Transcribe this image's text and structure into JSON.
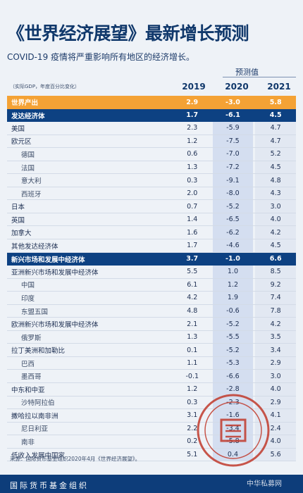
{
  "title": "《世界经济展望》最新增长预测",
  "subtitle": "COVID-19 疫情将严重影响所有地区的经济增长。",
  "header": {
    "projection_label": "预测值",
    "note": "（实际GDP，年度百分比变化）",
    "years": [
      "2019",
      "2020",
      "2021"
    ]
  },
  "rows": [
    {
      "label": "世界产出",
      "v": [
        "2.9",
        "-3.0",
        "5.8"
      ]
    },
    {
      "label": "发达经济体",
      "v": [
        "1.7",
        "-6.1",
        "4.5"
      ]
    },
    {
      "label": "美国",
      "v": [
        "2.3",
        "-5.9",
        "4.7"
      ]
    },
    {
      "label": "欧元区",
      "v": [
        "1.2",
        "-7.5",
        "4.7"
      ]
    },
    {
      "label": "德国",
      "v": [
        "0.6",
        "-7.0",
        "5.2"
      ]
    },
    {
      "label": "法国",
      "v": [
        "1.3",
        "-7.2",
        "4.5"
      ]
    },
    {
      "label": "意大利",
      "v": [
        "0.3",
        "-9.1",
        "4.8"
      ]
    },
    {
      "label": "西班牙",
      "v": [
        "2.0",
        "-8.0",
        "4.3"
      ]
    },
    {
      "label": "日本",
      "v": [
        "0.7",
        "-5.2",
        "3.0"
      ]
    },
    {
      "label": "英国",
      "v": [
        "1.4",
        "-6.5",
        "4.0"
      ]
    },
    {
      "label": "加拿大",
      "v": [
        "1.6",
        "-6.2",
        "4.2"
      ]
    },
    {
      "label": "其他发达经济体",
      "v": [
        "1.7",
        "-4.6",
        "4.5"
      ]
    },
    {
      "label": "新兴市场和发展中经济体",
      "v": [
        "3.7",
        "-1.0",
        "6.6"
      ]
    },
    {
      "label": "亚洲新兴市场和发展中经济体",
      "v": [
        "5.5",
        "1.0",
        "8.5"
      ]
    },
    {
      "label": "中国",
      "v": [
        "6.1",
        "1.2",
        "9.2"
      ]
    },
    {
      "label": "印度",
      "v": [
        "4.2",
        "1.9",
        "7.4"
      ]
    },
    {
      "label": "东盟五国",
      "v": [
        "4.8",
        "-0.6",
        "7.8"
      ]
    },
    {
      "label": "欧洲新兴市场和发展中经济体",
      "v": [
        "2.1",
        "-5.2",
        "4.2"
      ]
    },
    {
      "label": "俄罗斯",
      "v": [
        "1.3",
        "-5.5",
        "3.5"
      ]
    },
    {
      "label": "拉丁美洲和加勒比",
      "v": [
        "0.1",
        "-5.2",
        "3.4"
      ]
    },
    {
      "label": "巴西",
      "v": [
        "1.1",
        "-5.3",
        "2.9"
      ]
    },
    {
      "label": "墨西哥",
      "v": [
        "-0.1",
        "-6.6",
        "3.0"
      ]
    },
    {
      "label": "中东和中亚",
      "v": [
        "1.2",
        "-2.8",
        "4.0"
      ]
    },
    {
      "label": "沙特阿拉伯",
      "v": [
        "0.3",
        "-2.3",
        "2.9"
      ]
    },
    {
      "label": "撒哈拉以南非洲",
      "v": [
        "3.1",
        "-1.6",
        "4.1"
      ]
    },
    {
      "label": "尼日利亚",
      "v": [
        "2.2",
        "-3.4",
        "2.4"
      ]
    },
    {
      "label": "南非",
      "v": [
        "0.2",
        "-5.8",
        "4.0"
      ]
    },
    {
      "label": "低收入发展中国家",
      "v": [
        "5.1",
        "0.4",
        "5.6"
      ]
    }
  ],
  "source": "来源：国际货币基金组织2020年4月《世界经济展望》。",
  "footer": "国际货币基金组织",
  "watermark": {
    "stamp_text": "第一私募",
    "stamp_url": "SIMU001.cn",
    "corner": "中华私募网"
  },
  "colors": {
    "world": "#f4a235",
    "band": "#0d4182",
    "footer": "#0d3d7a"
  }
}
